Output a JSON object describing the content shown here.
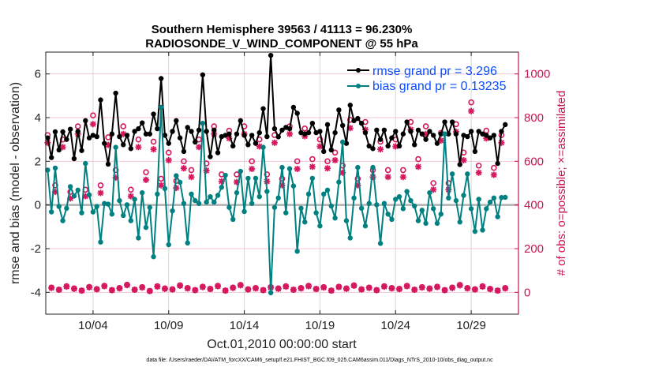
{
  "chart_data": {
    "type": "line",
    "title": "Southern Hemisphere 39563 / 41113 = 96.230%",
    "subtitle": "RADIOSONDE_V_WIND_COMPONENT @ 55 hPa",
    "xlabel": "Oct.01,2010 00:00:00 start",
    "ylabel": "rmse and bias (model - observation)",
    "ylabel_right": "# of obs: o=possible; ×=assimilated",
    "footer": "data file: /Users/raeder/DAI/ATM_forcXX/CAM6_setup/f.e21.FHIST_BGC.f09_025.CAM6assim.011/Diags_NTrS_2010-10/obs_diag_output.nc",
    "ylim": [
      -5,
      7
    ],
    "ylim_right": [
      -100,
      1100
    ],
    "xlim": [
      "09/30 21",
      "11/01 03"
    ],
    "yticks": [
      -4,
      -2,
      0,
      2,
      4,
      6
    ],
    "yticks_right": [
      0,
      200,
      400,
      600,
      800,
      1000
    ],
    "xticks": [
      {
        "at": "10/04 00",
        "label": "10/04"
      },
      {
        "at": "10/09 00",
        "label": "10/09"
      },
      {
        "at": "10/14 00",
        "label": "10/14"
      },
      {
        "at": "10/19 00",
        "label": "10/19"
      },
      {
        "at": "10/24 00",
        "label": "10/24"
      },
      {
        "at": "10/29 00",
        "label": "10/29"
      }
    ],
    "grid": true,
    "legend_placement": "top-right",
    "colors": {
      "rmse": "#000000",
      "bias": "#008080",
      "obs": "#d6175f",
      "right_axis": "#c8154f",
      "legend_text": "#0a4cff",
      "zero_line": "#b0b0b0"
    },
    "legend": [
      "rmse grand pr = 3.296",
      "bias grand pr = 0.13235"
    ],
    "x": [
      "10/01 00",
      "10/01 06",
      "10/01 12",
      "10/01 18",
      "10/02 00",
      "10/02 06",
      "10/02 12",
      "10/02 18",
      "10/03 00",
      "10/03 06",
      "10/03 12",
      "10/03 18",
      "10/04 00",
      "10/04 06",
      "10/04 12",
      "10/04 18",
      "10/05 00",
      "10/05 06",
      "10/05 12",
      "10/05 18",
      "10/06 00",
      "10/06 06",
      "10/06 12",
      "10/06 18",
      "10/07 00",
      "10/07 06",
      "10/07 12",
      "10/07 18",
      "10/08 00",
      "10/08 06",
      "10/08 12",
      "10/08 18",
      "10/09 00",
      "10/09 06",
      "10/09 12",
      "10/09 18",
      "10/10 00",
      "10/10 06",
      "10/10 12",
      "10/10 18",
      "10/11 00",
      "10/11 06",
      "10/11 12",
      "10/11 18",
      "10/12 00",
      "10/12 06",
      "10/12 12",
      "10/12 18",
      "10/13 00",
      "10/13 06",
      "10/13 12",
      "10/13 18",
      "10/14 00",
      "10/14 06",
      "10/14 12",
      "10/14 18",
      "10/15 00",
      "10/15 06",
      "10/15 12",
      "10/15 18",
      "10/16 00",
      "10/16 06",
      "10/16 12",
      "10/16 18",
      "10/17 00",
      "10/17 06",
      "10/17 12",
      "10/17 18",
      "10/18 00",
      "10/18 06",
      "10/18 12",
      "10/18 18",
      "10/19 00",
      "10/19 06",
      "10/19 12",
      "10/19 18",
      "10/20 00",
      "10/20 06",
      "10/20 12",
      "10/20 18",
      "10/21 00",
      "10/21 06",
      "10/21 12",
      "10/21 18",
      "10/22 00",
      "10/22 06",
      "10/22 12",
      "10/22 18",
      "10/23 00",
      "10/23 06",
      "10/23 12",
      "10/23 18",
      "10/24 00",
      "10/24 06",
      "10/24 12",
      "10/24 18",
      "10/25 00",
      "10/25 06",
      "10/25 12",
      "10/25 18",
      "10/26 00",
      "10/26 06",
      "10/26 12",
      "10/26 18",
      "10/27 00",
      "10/27 06",
      "10/27 12",
      "10/27 18",
      "10/28 00",
      "10/28 06",
      "10/28 12",
      "10/28 18",
      "10/29 00",
      "10/29 06",
      "10/29 12",
      "10/29 18",
      "10/30 00",
      "10/30 06",
      "10/30 12",
      "10/30 18",
      "10/31 00",
      "10/31 06"
    ],
    "series": [
      {
        "name": "rmse grand pr = 3.296",
        "axis": "left",
        "values": [
          3.07,
          2.17,
          3.35,
          2.52,
          3.35,
          3.0,
          3.47,
          2.12,
          3.37,
          2.49,
          3.86,
          3.07,
          3.19,
          3.13,
          4.81,
          2.82,
          1.87,
          3.25,
          5.12,
          3.13,
          2.76,
          3.19,
          2.58,
          3.37,
          3.49,
          3.76,
          3.25,
          3.25,
          4.16,
          3.49,
          5.79,
          3.19,
          2.82,
          3.37,
          3.86,
          3.07,
          2.45,
          3.55,
          3.37,
          2.88,
          3.43,
          5.96,
          3.37,
          2.21,
          3.43,
          2.39,
          3.13,
          3.19,
          3.25,
          2.7,
          3.25,
          3.86,
          3.19,
          2.76,
          3.19,
          2.82,
          3.31,
          4.41,
          3.13,
          6.85,
          3.49,
          3.12,
          3.43,
          3.55,
          3.49,
          4.47,
          4.2,
          3.31,
          3.25,
          3.31,
          3.74,
          3.31,
          3.37,
          2.45,
          3.68,
          2.52,
          3.31,
          4.35,
          3.64,
          2.82,
          4.57,
          3.86,
          3.96,
          3.74,
          3.31,
          2.7,
          2.58,
          3.43,
          3.0,
          3.43,
          2.7,
          3.07,
          3.37,
          2.7,
          3.25,
          3.8,
          3.37,
          2.76,
          3.43,
          3.25,
          3.0,
          3.37,
          3.19,
          2.82,
          3.25,
          3.8,
          3.25,
          3.8,
          3.25,
          1.85,
          3.19,
          3.13,
          3.37,
          2.45,
          3.37,
          3.25,
          3.19,
          3.07,
          3.19,
          1.9,
          3.37,
          3.68
        ]
      },
      {
        "name": "bias grand pr = 0.13235",
        "axis": "left",
        "values": [
          1.6,
          -0.32,
          1.69,
          -0.07,
          -0.72,
          -0.15,
          0.84,
          0.41,
          0.68,
          -0.36,
          1.9,
          0.46,
          -0.32,
          -0.07,
          -1.7,
          0.07,
          0.04,
          -0.42,
          2.64,
          0.2,
          -0.48,
          0.01,
          -0.72,
          0.26,
          -1.51,
          0.56,
          -1.03,
          -0.11,
          -2.37,
          0.5,
          4.47,
          0.75,
          -1.82,
          -0.27,
          1.34,
          1.04,
          0.07,
          -1.74,
          0.5,
          0.2,
          0.07,
          3.74,
          0.13,
          0.38,
          0.13,
          0.44,
          0.81,
          1.36,
          -0.11,
          -0.66,
          0.56,
          1.54,
          -0.3,
          1.22,
          0.07,
          1.22,
          0.38,
          2.64,
          0.62,
          -4.02,
          -0.11,
          0.32,
          1.72,
          -0.36,
          1.66,
          0.87,
          -2.12,
          -0.15,
          -0.78,
          0.5,
          1.22,
          -0.36,
          -0.96,
          0.5,
          0.68,
          -0.05,
          -0.6,
          1.05,
          2.88,
          -0.72,
          -1.51,
          0.32,
          1.72,
          -0.15,
          -0.96,
          0.07,
          1.72,
          0.01,
          -1.76,
          0.07,
          -0.42,
          -0.66,
          0.26,
          0.38,
          -0.17,
          0.62,
          0.2,
          -0.05,
          -0.72,
          -0.24,
          -0.84,
          0.56,
          -0.17,
          -0.84,
          -0.42,
          3.25,
          0.32,
          1.42,
          0.2,
          -0.78,
          0.44,
          1.42,
          -0.17,
          -1.21,
          0.26,
          -1.15,
          -0.17,
          0.13,
          0.32,
          -0.54,
          0.34,
          0.35
        ]
      },
      {
        "name": "possible",
        "axis": "right",
        "values": [
          720,
          22,
          490,
          12,
          700,
          28,
          460,
          18,
          760,
          8,
          470,
          25,
          810,
          15,
          490,
          30,
          710,
          10,
          560,
          20,
          760,
          35,
          470,
          12,
          700,
          24,
          550,
          6,
          690,
          28,
          520,
          18,
          640,
          14,
          510,
          32,
          600,
          20,
          560,
          10,
          700,
          26,
          590,
          16,
          760,
          30,
          540,
          8,
          740,
          22,
          540,
          34,
          760,
          14,
          600,
          20,
          700,
          10,
          540,
          24,
          720,
          18,
          520,
          28,
          760,
          12,
          600,
          20,
          750,
          30,
          610,
          16,
          700,
          24,
          600,
          8,
          640,
          26,
          580,
          18,
          790,
          32,
          520,
          14,
          780,
          22,
          560,
          10,
          690,
          28,
          560,
          20,
          700,
          16,
          560,
          30,
          780,
          12,
          610,
          24,
          760,
          18,
          500,
          26,
          730,
          10,
          500,
          22,
          770,
          34,
          640,
          20,
          870,
          14,
          580,
          28,
          740,
          16,
          570,
          8,
          720,
          20
        ]
      },
      {
        "name": "assimilated",
        "axis": "right",
        "values": [
          685,
          20,
          460,
          12,
          665,
          26,
          430,
          16,
          725,
          8,
          440,
          23,
          770,
          14,
          455,
          28,
          675,
          10,
          525,
          18,
          725,
          33,
          440,
          12,
          665,
          22,
          515,
          6,
          655,
          26,
          490,
          16,
          605,
          13,
          478,
          30,
          568,
          18,
          528,
          10,
          665,
          24,
          558,
          15,
          725,
          28,
          508,
          8,
          705,
          20,
          505,
          32,
          725,
          13,
          565,
          18,
          668,
          10,
          508,
          22,
          685,
          16,
          490,
          26,
          725,
          12,
          565,
          18,
          715,
          28,
          575,
          15,
          668,
          22,
          568,
          8,
          605,
          24,
          548,
          16,
          752,
          30,
          490,
          13,
          745,
          20,
          528,
          10,
          655,
          26,
          528,
          18,
          668,
          15,
          528,
          28,
          745,
          12,
          575,
          22,
          725,
          16,
          470,
          24,
          695,
          10,
          470,
          20,
          735,
          32,
          605,
          18,
          830,
          13,
          548,
          26,
          705,
          15,
          538,
          8,
          685,
          18
        ]
      }
    ]
  }
}
